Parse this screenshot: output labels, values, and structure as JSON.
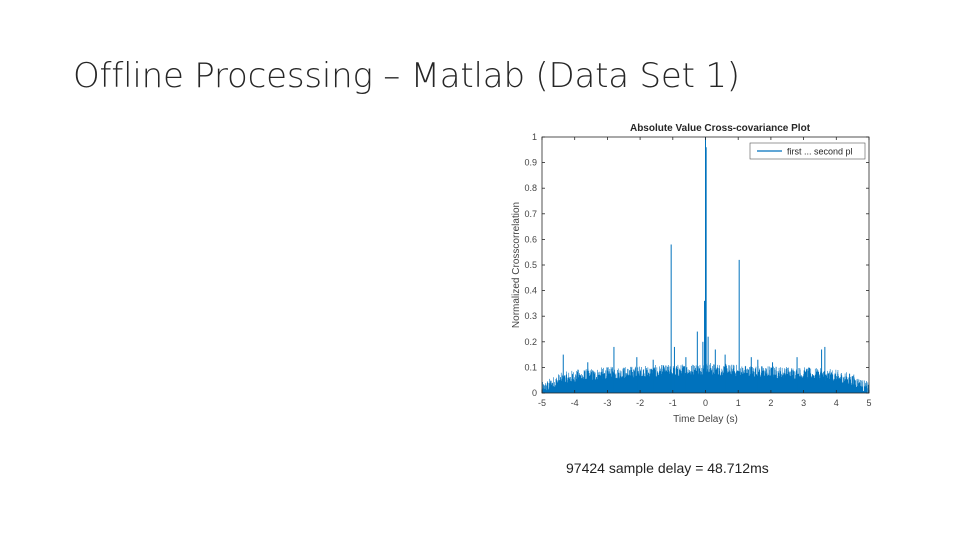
{
  "slide": {
    "title": "Offline Processing – Matlab (Data Set 1)",
    "caption": "97424 sample delay = 48.712ms"
  },
  "colors": {
    "series": "#0072BD",
    "axis": "#262626",
    "tick_text": "#444444"
  },
  "chart_data": {
    "type": "line",
    "title": "Absolute Value Cross-covariance Plot",
    "xlabel": "Time Delay (s)",
    "ylabel": "Normalized Crosscorrelation",
    "xlim": [
      -5,
      5
    ],
    "ylim": [
      0,
      1
    ],
    "x_ticks": [
      -5,
      -4,
      -3,
      -2,
      -1,
      0,
      1,
      2,
      3,
      4,
      5
    ],
    "y_ticks": [
      0,
      0.1,
      0.2,
      0.3,
      0.4,
      0.5,
      0.6,
      0.7,
      0.8,
      0.9,
      1
    ],
    "y_tick_labels": [
      "0",
      "0.1",
      "0.2",
      "0.3",
      "0.4",
      "0.5",
      "0.6",
      "0.7",
      "0.8",
      "0.9",
      "1"
    ],
    "grid": false,
    "legend": {
      "position": "top-right",
      "entries": [
        "first ... second pl"
      ]
    },
    "series": [
      {
        "name": "first ... second pl",
        "envelope": {
          "x": [
            -5,
            -4.5,
            -4,
            -3,
            -2,
            -1,
            -0.3,
            0,
            0.3,
            1,
            2,
            3,
            4,
            4.5,
            5
          ],
          "y": [
            0.0,
            0.035,
            0.05,
            0.06,
            0.065,
            0.07,
            0.075,
            0.08,
            0.075,
            0.07,
            0.065,
            0.06,
            0.05,
            0.035,
            0.0
          ]
        },
        "noise_amplitude": 0.03,
        "peaks": [
          {
            "x": 0.0,
            "y": 1.0
          },
          {
            "x": 0.02,
            "y": 0.96
          },
          {
            "x": -0.03,
            "y": 0.36
          },
          {
            "x": 0.08,
            "y": 0.22
          },
          {
            "x": -0.08,
            "y": 0.2
          },
          {
            "x": -1.05,
            "y": 0.58
          },
          {
            "x": 1.03,
            "y": 0.52
          },
          {
            "x": -2.1,
            "y": 0.14
          },
          {
            "x": 2.05,
            "y": 0.12
          },
          {
            "x": -0.95,
            "y": 0.18
          },
          {
            "x": -0.25,
            "y": 0.24
          },
          {
            "x": 0.3,
            "y": 0.17
          },
          {
            "x": 0.6,
            "y": 0.15
          },
          {
            "x": -0.6,
            "y": 0.14
          },
          {
            "x": -1.6,
            "y": 0.13
          },
          {
            "x": 1.6,
            "y": 0.13
          },
          {
            "x": -2.8,
            "y": 0.18
          },
          {
            "x": 1.4,
            "y": 0.14
          },
          {
            "x": -4.35,
            "y": 0.15
          },
          {
            "x": 3.55,
            "y": 0.17
          },
          {
            "x": 3.65,
            "y": 0.18
          },
          {
            "x": -3.6,
            "y": 0.12
          },
          {
            "x": 2.8,
            "y": 0.14
          }
        ]
      }
    ]
  }
}
